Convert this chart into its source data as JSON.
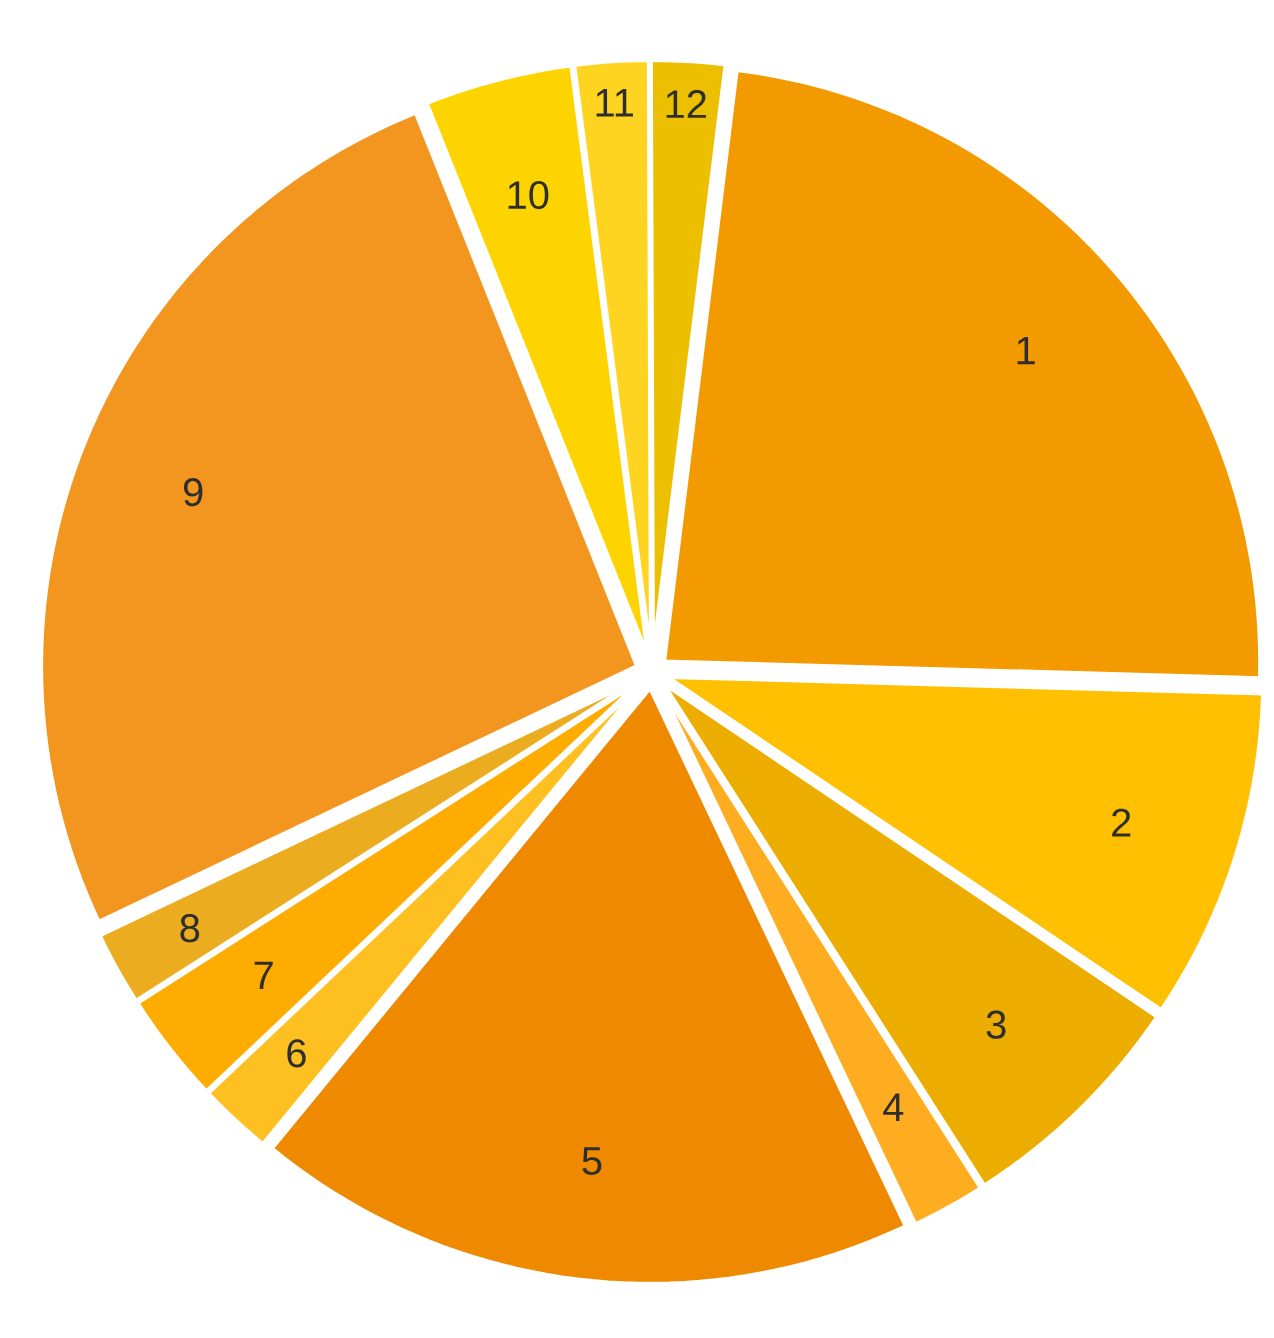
{
  "chart_data": {
    "type": "pie",
    "categories": [
      "1",
      "2",
      "3",
      "4",
      "5",
      "6",
      "7",
      "8",
      "9",
      "10",
      "11",
      "12"
    ],
    "values": [
      23.5,
      9,
      6.5,
      2,
      18,
      2,
      3,
      2,
      26,
      4,
      2,
      2
    ],
    "colors": [
      "#f39a00",
      "#fec000",
      "#ecac00",
      "#feac20",
      "#ef8a00",
      "#fec020",
      "#feac00",
      "#ecac20",
      "#f29620",
      "#fed400",
      "#fed420",
      "#ecc000"
    ]
  }
}
